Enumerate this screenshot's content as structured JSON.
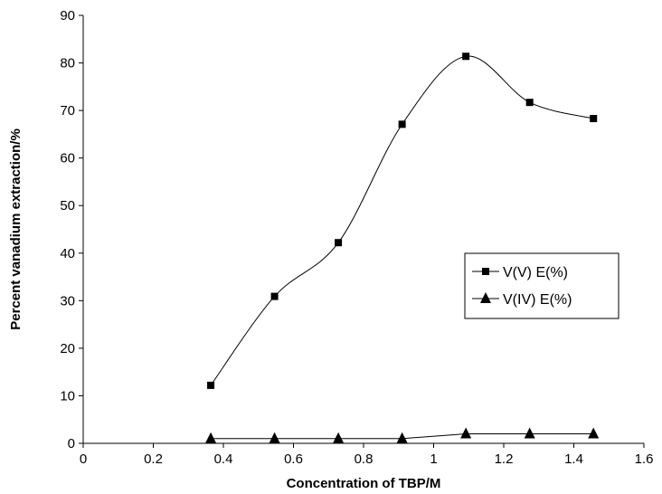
{
  "chart_data": {
    "type": "line",
    "title": "",
    "xlabel": "Concentration of TBP/M",
    "ylabel": "Percent vanadium extraction/%",
    "xlim": [
      0,
      1.6
    ],
    "ylim": [
      0,
      90
    ],
    "x_ticks": [
      "0",
      "0.2",
      "0.4",
      "0.6",
      "0.8",
      "1",
      "1.2",
      "1.4",
      "1.6"
    ],
    "y_ticks": [
      "0",
      "10",
      "20",
      "30",
      "40",
      "50",
      "60",
      "70",
      "80",
      "90"
    ],
    "grid": false,
    "legend_position": "right",
    "x": [
      0.364,
      0.546,
      0.728,
      0.91,
      1.092,
      1.274,
      1.456
    ],
    "series": [
      {
        "name": "V(V) E(%)",
        "marker": "square",
        "smooth": true,
        "values": [
          12.2,
          30.9,
          42.2,
          67.1,
          81.4,
          71.7,
          68.3
        ]
      },
      {
        "name": "V(IV) E(%)",
        "marker": "triangle",
        "smooth": false,
        "values": [
          1.0,
          1.0,
          1.0,
          1.0,
          2.0,
          2.0,
          2.0
        ]
      }
    ]
  }
}
